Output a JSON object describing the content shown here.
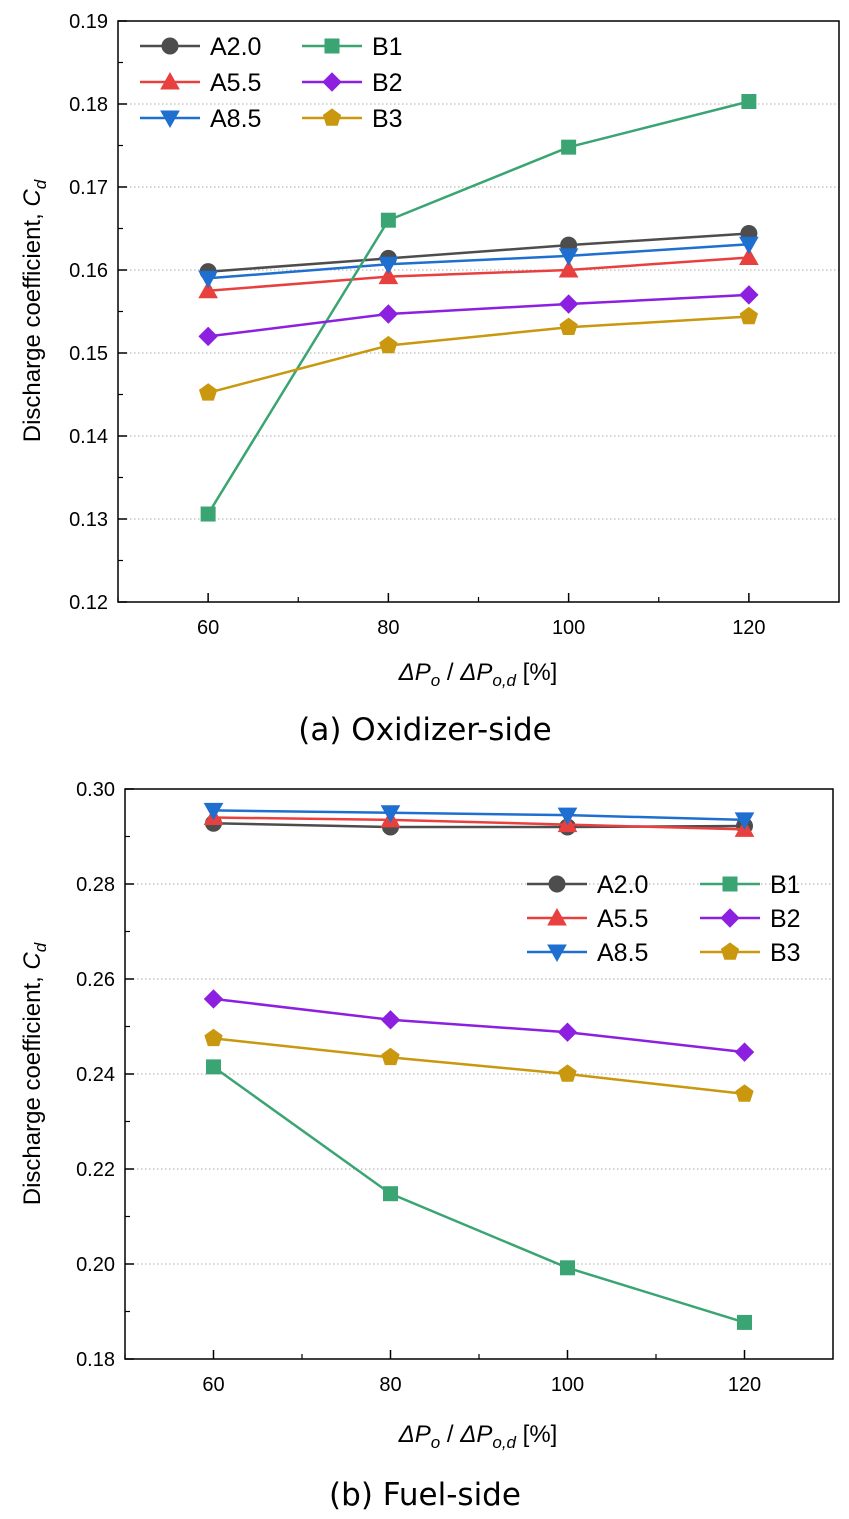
{
  "chart_data": [
    {
      "type": "line",
      "caption": "(a) Oxidizer-side",
      "xlabel": "ΔP_o / ΔP_o,d [%]",
      "ylabel": "Discharge coefficient, C_d",
      "x": [
        60,
        80,
        100,
        120
      ],
      "xlim": [
        50,
        130
      ],
      "xticks": [
        "60",
        "80",
        "100",
        "120"
      ],
      "ylim": [
        0.12,
        0.19
      ],
      "yticks": [
        "0.12",
        "0.13",
        "0.14",
        "0.15",
        "0.16",
        "0.17",
        "0.18",
        "0.19"
      ],
      "grid": "horizontal dotted",
      "legend_position": "top-left",
      "series": [
        {
          "name": "A2.0",
          "color": "#4d4d4d",
          "marker": "circle",
          "values": [
            0.1598,
            0.1614,
            0.163,
            0.1644
          ]
        },
        {
          "name": "A5.5",
          "color": "#e8403f",
          "marker": "triangle-up",
          "values": [
            0.1575,
            0.1592,
            0.16,
            0.1615
          ]
        },
        {
          "name": "A8.5",
          "color": "#1e6fd0",
          "marker": "triangle-down",
          "values": [
            0.159,
            0.1607,
            0.1617,
            0.1631
          ]
        },
        {
          "name": "B1",
          "color": "#3aa573",
          "marker": "square",
          "values": [
            0.1306,
            0.166,
            0.1748,
            0.1803
          ]
        },
        {
          "name": "B2",
          "color": "#8c1fe0",
          "marker": "diamond",
          "values": [
            0.152,
            0.1547,
            0.1559,
            0.157
          ]
        },
        {
          "name": "B3",
          "color": "#c9980e",
          "marker": "pentagon",
          "values": [
            0.1452,
            0.1509,
            0.1531,
            0.1544
          ]
        }
      ]
    },
    {
      "type": "line",
      "caption": "(b) Fuel-side",
      "xlabel": "ΔP_o / ΔP_o,d [%]",
      "ylabel": "Discharge coefficient, C_d",
      "x": [
        60,
        80,
        100,
        120
      ],
      "xlim": [
        50,
        130
      ],
      "xticks": [
        "60",
        "80",
        "100",
        "120"
      ],
      "ylim": [
        0.18,
        0.3
      ],
      "yticks": [
        "0.18",
        "0.20",
        "0.22",
        "0.24",
        "0.26",
        "0.28",
        "0.30"
      ],
      "grid": "horizontal dotted",
      "legend_position": "right",
      "series": [
        {
          "name": "A2.0",
          "color": "#4d4d4d",
          "marker": "circle",
          "values": [
            0.2928,
            0.292,
            0.292,
            0.2922
          ]
        },
        {
          "name": "A5.5",
          "color": "#e8403f",
          "marker": "triangle-up",
          "values": [
            0.294,
            0.2935,
            0.2925,
            0.2915
          ]
        },
        {
          "name": "A8.5",
          "color": "#1e6fd0",
          "marker": "triangle-down",
          "values": [
            0.2955,
            0.295,
            0.2945,
            0.2935
          ]
        },
        {
          "name": "B1",
          "color": "#3aa573",
          "marker": "square",
          "values": [
            0.2415,
            0.2148,
            0.1992,
            0.1877
          ]
        },
        {
          "name": "B2",
          "color": "#8c1fe0",
          "marker": "diamond",
          "values": [
            0.2558,
            0.2514,
            0.2488,
            0.2446
          ]
        },
        {
          "name": "B3",
          "color": "#c9980e",
          "marker": "pentagon",
          "values": [
            0.2475,
            0.2435,
            0.24,
            0.2358
          ]
        }
      ]
    }
  ]
}
